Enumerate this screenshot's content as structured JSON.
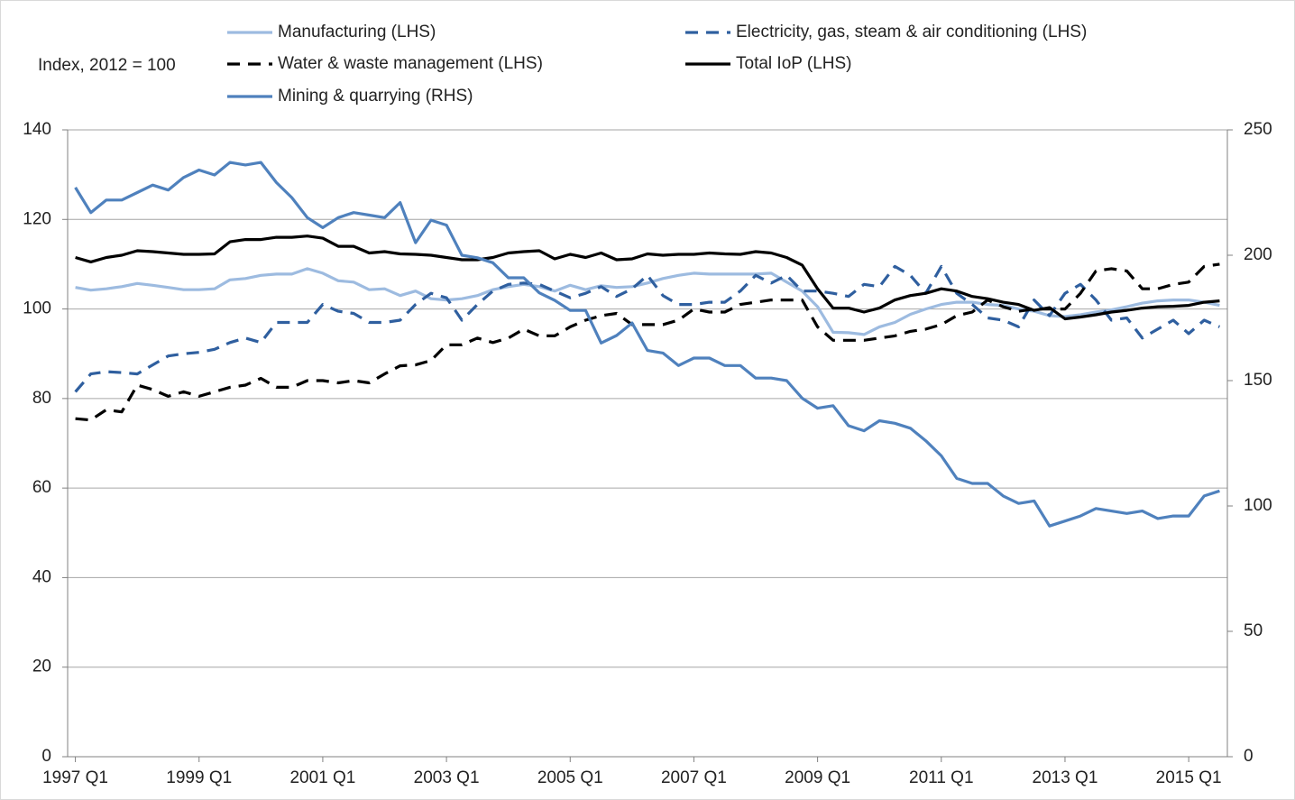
{
  "chart_data": {
    "type": "line",
    "annotation": "Index, 2012 = 100",
    "legend": "top",
    "grid": true,
    "categories": [
      "1997 Q1",
      null,
      null,
      null,
      null,
      null,
      null,
      null,
      "1999 Q1",
      null,
      null,
      null,
      null,
      null,
      null,
      null,
      "2001 Q1",
      null,
      null,
      null,
      null,
      null,
      null,
      null,
      "2003 Q1",
      null,
      null,
      null,
      null,
      null,
      null,
      null,
      "2005 Q1",
      null,
      null,
      null,
      null,
      null,
      null,
      null,
      "2007 Q1",
      null,
      null,
      null,
      null,
      null,
      null,
      null,
      "2009 Q1",
      null,
      null,
      null,
      null,
      null,
      null,
      null,
      "2011 Q1",
      null,
      null,
      null,
      null,
      null,
      null,
      null,
      "2013 Q1",
      null,
      null,
      null,
      null,
      null,
      null,
      null,
      "2015 Q1",
      null,
      null
    ],
    "ylim": [
      0,
      140
    ],
    "yticks": [
      0,
      20,
      40,
      60,
      80,
      100,
      120,
      140
    ],
    "y2lim": [
      0,
      250
    ],
    "y2ticks": [
      0,
      50,
      100,
      150,
      200,
      250
    ],
    "series": [
      {
        "name": "Manufacturing (LHS)",
        "color": "#9dbbe0",
        "dash": false,
        "values": [
          104.8,
          104.2,
          104.5,
          105,
          105.7,
          105.3,
          104.8,
          104.3,
          104.3,
          104.5,
          106.5,
          106.8,
          107.5,
          107.8,
          107.8,
          109,
          108,
          106.3,
          106,
          104.3,
          104.5,
          103,
          104,
          102.3,
          102,
          102.3,
          103,
          104.3,
          105,
          105.5,
          105,
          104,
          105.3,
          104.3,
          105.2,
          104.8,
          105,
          105.8,
          106.8,
          107.5,
          108,
          107.8,
          107.8,
          107.8,
          107.8,
          108,
          106,
          104,
          100.5,
          94.8,
          94.7,
          94.3,
          96,
          97,
          98.8,
          100,
          101,
          101.5,
          101.5,
          101,
          100.8,
          100,
          99.5,
          98.5,
          98.3,
          98.7,
          99.3,
          99.8,
          100.5,
          101.3,
          101.8,
          102,
          102,
          101.5,
          100.8
        ]
      },
      {
        "name": "Electricity, gas, steam & air conditioning (LHS)",
        "color": "#2f5f9f",
        "dash": true,
        "values": [
          81.5,
          85.5,
          86,
          85.8,
          85.5,
          87.5,
          89.5,
          90,
          90.3,
          91,
          92.5,
          93.5,
          92.5,
          97,
          97,
          97,
          101,
          99.5,
          99,
          97,
          97,
          97.5,
          101,
          103.5,
          102.5,
          97.5,
          101,
          104,
          105.5,
          105.8,
          105.5,
          104,
          102.5,
          103.5,
          105,
          102.8,
          104.5,
          107.5,
          103,
          101,
          101,
          101.5,
          101.5,
          104,
          107.5,
          105.8,
          107.5,
          104,
          104,
          103.5,
          102.8,
          105.5,
          105,
          109.5,
          107.5,
          103.5,
          109.5,
          103.5,
          101,
          98,
          97.5,
          96,
          102,
          98.5,
          103.5,
          105.5,
          102,
          97.5,
          98,
          93.5,
          95.5,
          97.5,
          94.5,
          97.5,
          96
        ]
      },
      {
        "name": "Water & waste management (LHS)",
        "color": "#000000",
        "dash": true,
        "values": [
          75.5,
          75.2,
          77.5,
          77,
          83,
          82,
          80.5,
          81.5,
          80.5,
          81.5,
          82.5,
          83,
          84.5,
          82.5,
          82.5,
          84,
          84,
          83.5,
          84,
          83.5,
          85.5,
          87.3,
          87.5,
          88.5,
          92,
          92,
          93.5,
          92.5,
          93.5,
          95.5,
          94,
          94,
          96,
          97.5,
          98.5,
          99,
          96.5,
          96.5,
          96.5,
          97.5,
          100,
          99.3,
          99.3,
          101,
          101.5,
          102,
          102,
          102,
          96,
          93,
          93,
          93,
          93.5,
          94,
          95,
          95.5,
          96.5,
          98.5,
          99.3,
          102,
          100.5,
          99.5,
          100,
          100,
          100,
          103.5,
          108.5,
          109,
          108.5,
          104.5,
          104.5,
          105.5,
          106,
          109.5,
          110
        ]
      },
      {
        "name": "Total IoP (LHS)",
        "color": "#000000",
        "dash": false,
        "values": [
          111.5,
          110.5,
          111.5,
          112,
          113,
          112.8,
          112.5,
          112.2,
          112.2,
          112.3,
          115,
          115.5,
          115.5,
          116,
          116,
          116.3,
          115.8,
          114,
          114,
          112.5,
          112.8,
          112.3,
          112.2,
          112,
          111.5,
          111,
          111,
          111.5,
          112.5,
          112.8,
          113,
          111.2,
          112.2,
          111.5,
          112.5,
          111,
          111.2,
          112.3,
          112,
          112.2,
          112.2,
          112.5,
          112.3,
          112.2,
          112.8,
          112.5,
          111.5,
          109.8,
          104.5,
          100.2,
          100.2,
          99.3,
          100.2,
          102,
          103,
          103.5,
          104.5,
          104,
          102.8,
          102.3,
          101.5,
          101,
          99.7,
          100.3,
          97.8,
          98.2,
          98.7,
          99.3,
          99.7,
          100.2,
          100.5,
          100.6,
          100.8,
          101.5,
          101.8
        ]
      },
      {
        "name": "Mining & quarrying (RHS)",
        "color": "#4f81bd",
        "dash": false,
        "axis": "y2",
        "values": [
          227,
          217,
          222,
          222,
          225,
          228,
          226,
          231,
          234,
          232,
          237,
          236,
          237,
          229,
          223,
          215,
          211,
          215,
          217,
          216,
          215,
          221,
          205,
          214,
          212,
          200,
          199,
          197,
          191,
          191,
          185,
          182,
          178,
          178,
          165,
          168,
          173,
          162,
          161,
          156,
          159,
          159,
          156,
          156,
          151,
          151,
          150,
          143,
          139,
          140,
          132,
          130,
          134,
          133,
          131,
          126,
          120,
          111,
          109,
          109,
          104,
          101,
          102,
          92,
          94,
          96,
          99,
          98,
          97,
          98,
          95,
          96,
          96,
          104,
          106
        ]
      }
    ]
  }
}
